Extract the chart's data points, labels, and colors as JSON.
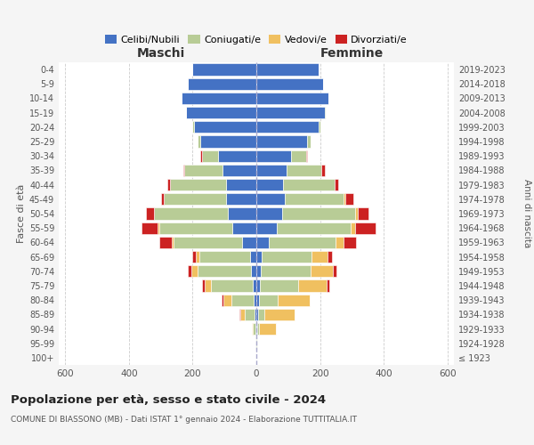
{
  "age_groups": [
    "100+",
    "95-99",
    "90-94",
    "85-89",
    "80-84",
    "75-79",
    "70-74",
    "65-69",
    "60-64",
    "55-59",
    "50-54",
    "45-49",
    "40-44",
    "35-39",
    "30-34",
    "25-29",
    "20-24",
    "15-19",
    "10-14",
    "5-9",
    "0-4"
  ],
  "birth_years": [
    "≤ 1923",
    "1924-1928",
    "1929-1933",
    "1934-1938",
    "1939-1943",
    "1944-1948",
    "1949-1953",
    "1954-1958",
    "1959-1963",
    "1964-1968",
    "1969-1973",
    "1974-1978",
    "1979-1983",
    "1984-1988",
    "1989-1993",
    "1994-1998",
    "1999-2003",
    "2004-2008",
    "2009-2013",
    "2014-2018",
    "2019-2023"
  ],
  "colors": {
    "celibi": "#4472c4",
    "coniugati": "#b8cc96",
    "vedovi": "#f0c060",
    "divorziati": "#cc2222"
  },
  "males": {
    "celibi": [
      1,
      1,
      2,
      5,
      8,
      12,
      18,
      20,
      45,
      75,
      90,
      95,
      95,
      105,
      120,
      175,
      195,
      220,
      235,
      215,
      200
    ],
    "coniugati": [
      0,
      1,
      8,
      30,
      70,
      130,
      165,
      160,
      215,
      230,
      230,
      195,
      175,
      120,
      50,
      10,
      5,
      2,
      0,
      0,
      0
    ],
    "vedovi": [
      0,
      0,
      5,
      15,
      25,
      20,
      20,
      10,
      5,
      5,
      2,
      0,
      0,
      0,
      0,
      0,
      2,
      0,
      0,
      0,
      0
    ],
    "divorziati": [
      0,
      0,
      0,
      2,
      5,
      8,
      12,
      12,
      40,
      50,
      25,
      8,
      8,
      5,
      5,
      0,
      0,
      0,
      0,
      0,
      0
    ]
  },
  "females": {
    "celibi": [
      1,
      1,
      2,
      5,
      8,
      10,
      15,
      18,
      38,
      65,
      80,
      90,
      85,
      95,
      110,
      160,
      195,
      215,
      225,
      210,
      195
    ],
    "coniugati": [
      0,
      1,
      5,
      20,
      60,
      120,
      155,
      155,
      210,
      230,
      230,
      185,
      160,
      110,
      45,
      10,
      5,
      2,
      0,
      0,
      0
    ],
    "vedovi": [
      0,
      2,
      55,
      95,
      100,
      90,
      70,
      50,
      25,
      15,
      8,
      5,
      2,
      0,
      0,
      0,
      0,
      0,
      0,
      0,
      0
    ],
    "divorziati": [
      0,
      0,
      0,
      0,
      0,
      8,
      12,
      15,
      40,
      65,
      35,
      25,
      10,
      10,
      5,
      0,
      0,
      0,
      0,
      0,
      0
    ]
  },
  "xlim": 620,
  "title_main": "Popolazione per età, sesso e stato civile - 2024",
  "title_sub": "COMUNE DI BIASSONO (MB) - Dati ISTAT 1° gennaio 2024 - Elaborazione TUTTITALIA.IT",
  "ylabel_left": "Fasce di età",
  "ylabel_right": "Anni di nascita",
  "label_maschi": "Maschi",
  "label_femmine": "Femmine",
  "bg_color": "#f5f5f5",
  "plot_bg": "#ffffff",
  "legend_labels": [
    "Celibi/Nubili",
    "Coniugati/e",
    "Vedovi/e",
    "Divorziati/e"
  ]
}
